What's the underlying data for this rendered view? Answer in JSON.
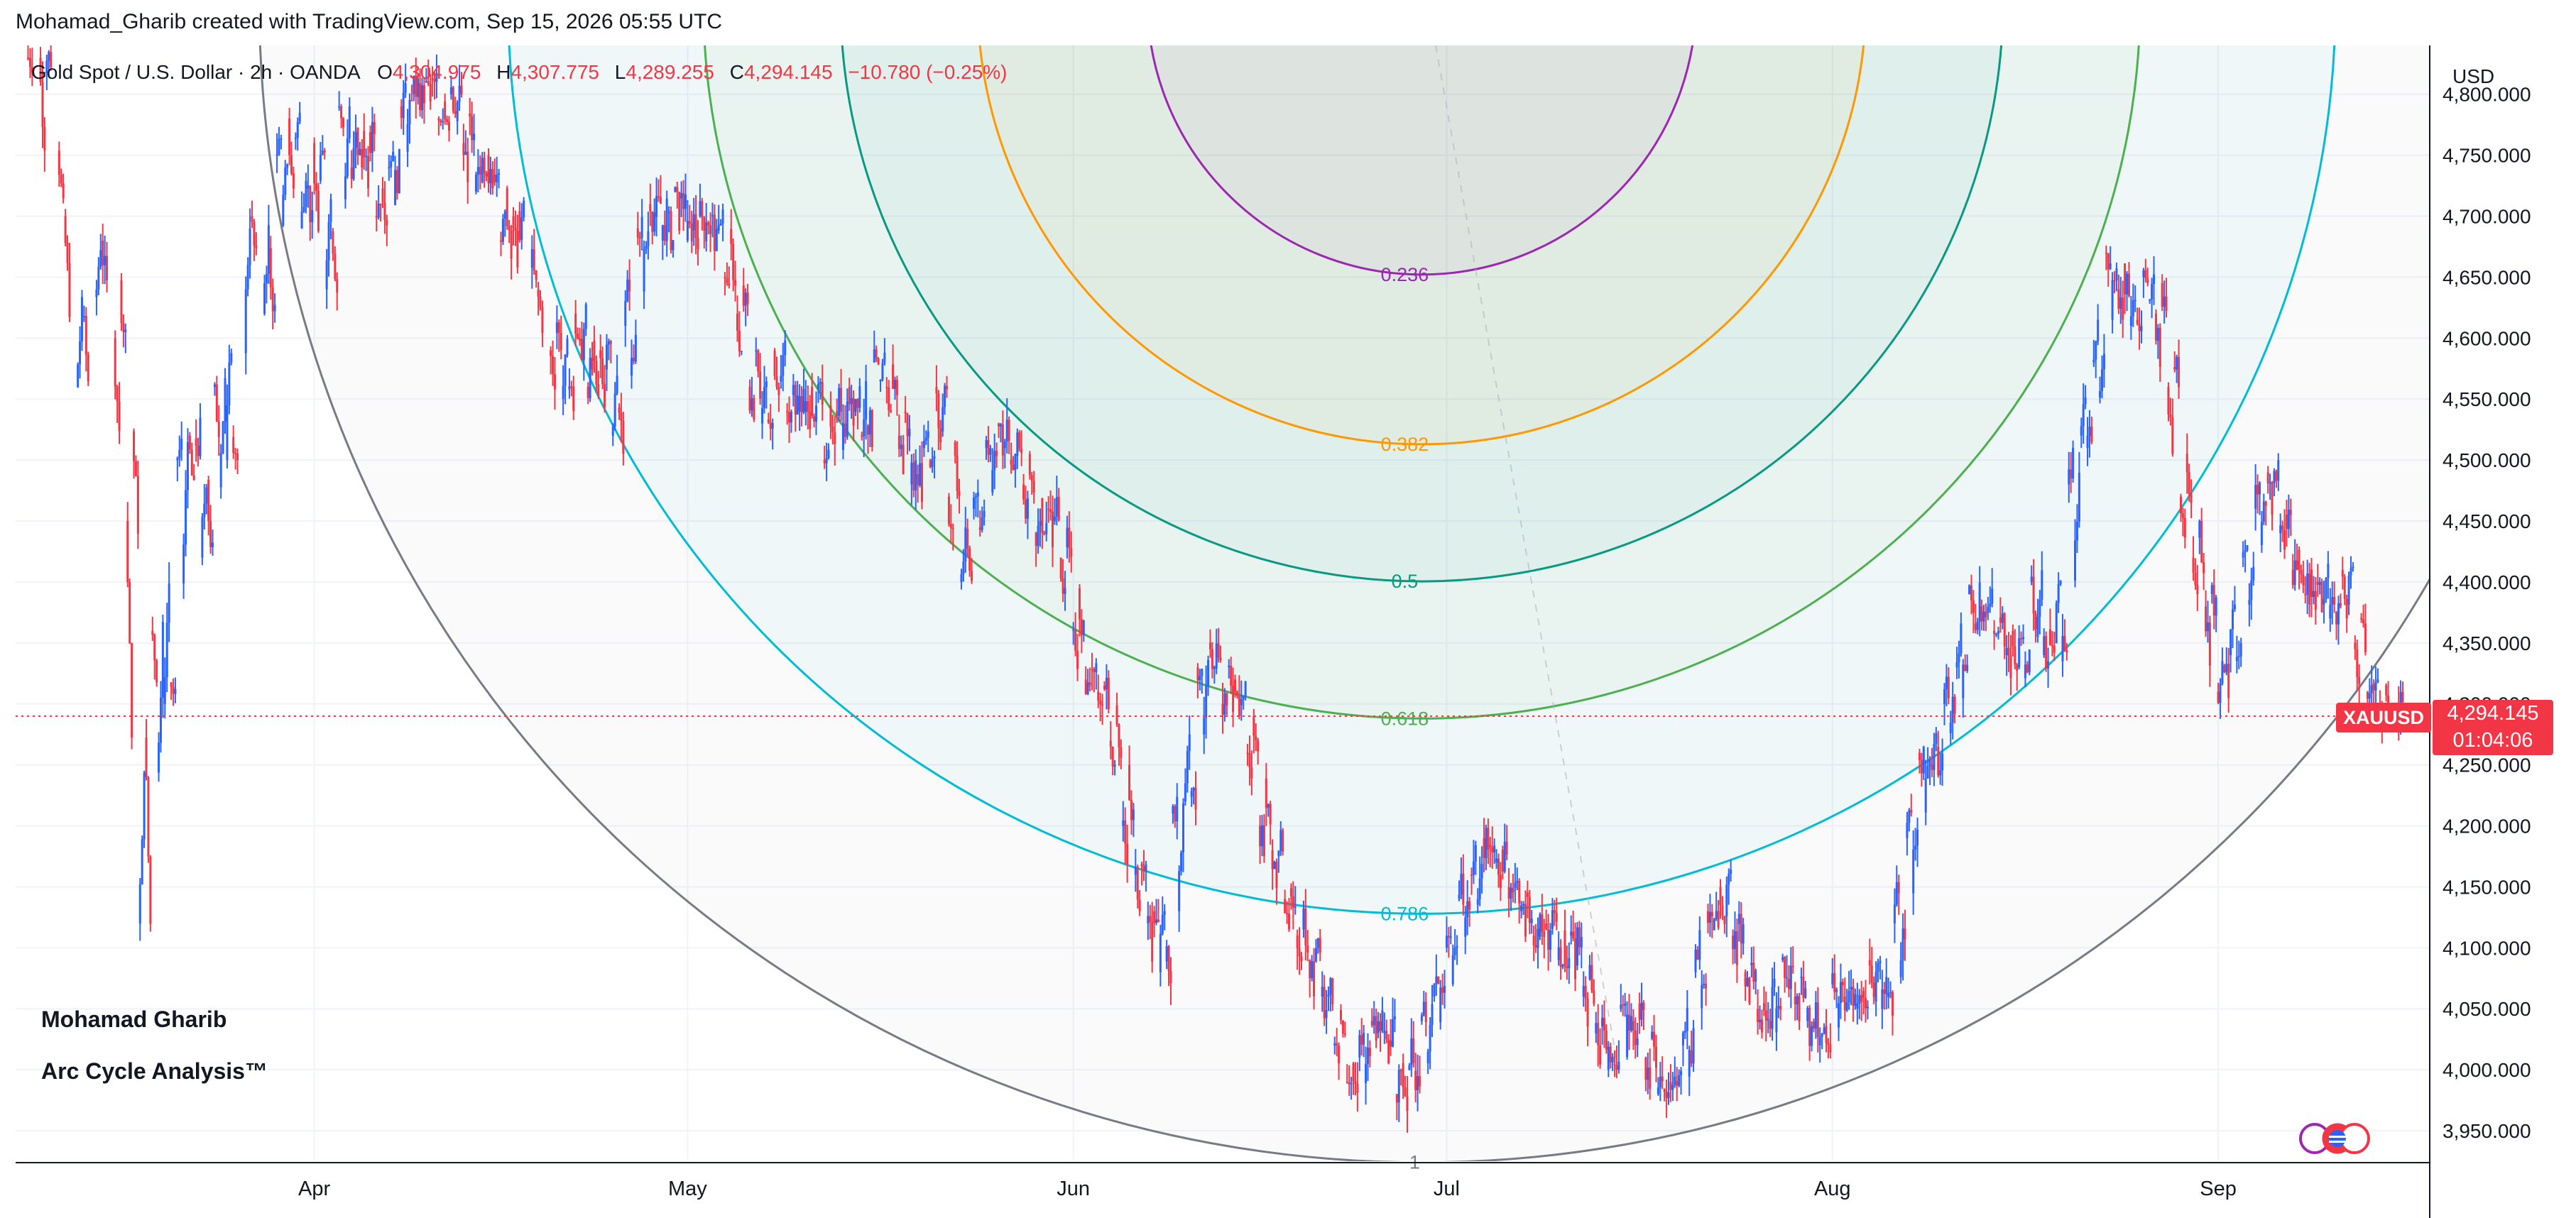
{
  "header": {
    "credit": "Mohamad_Gharib created with TradingView.com, Sep 15, 2026 05:55 UTC"
  },
  "legend": {
    "symbol": "Gold Spot / U.S. Dollar · 2h · OANDA",
    "open_key": "O",
    "open": "4,304.975",
    "high_key": "H",
    "high": "4,307.775",
    "low_key": "L",
    "low": "4,289.255",
    "close_key": "C",
    "close": "4,294.145",
    "change": "−10.780 (−0.25%)"
  },
  "axis": {
    "currency": "USD"
  },
  "price_tag": {
    "symbol": "XAUUSD",
    "price": "4,294.145",
    "countdown": "01:04:06"
  },
  "watermark": {
    "line1": "Mohamad Gharib",
    "line2": "Arc Cycle Analysis™"
  },
  "colors": {
    "up": "#2962ff",
    "down": "#f23645",
    "fib_0236": "#9c27b0",
    "fib_0382": "#ff9800",
    "fib_05": "#089981",
    "fib_0618": "#4caf50",
    "fib_0786": "#00bcd4",
    "fib_1": "#787b86"
  },
  "chart_data": {
    "type": "line",
    "title": "Gold Spot / U.S. Dollar · 2h · OANDA",
    "xlabel": "",
    "ylabel": "USD",
    "ylim": [
      3925,
      4840
    ],
    "y_ticks": [
      4800,
      4750,
      4700,
      4650,
      4600,
      4550,
      4500,
      4450,
      4400,
      4350,
      4300,
      4250,
      4200,
      4150,
      4100,
      4050,
      4000,
      3950
    ],
    "y_tick_labels": [
      "4,800.000",
      "4,750.000",
      "4,700.000",
      "4,650.000",
      "4,600.000",
      "4,550.000",
      "4,500.000",
      "4,450.000",
      "4,400.000",
      "4,350.000",
      "4,300.000",
      "4,250.000",
      "4,200.000",
      "4,150.000",
      "4,100.000",
      "4,050.000",
      "4,000.000",
      "3,950.000"
    ],
    "xlim": [
      "2026-03-08",
      "2026-09-18"
    ],
    "x_ticks": [
      "2026-04-01",
      "2026-05-01",
      "2026-06-01",
      "2026-07-01",
      "2026-08-01",
      "2026-09-01"
    ],
    "x_tick_labels": [
      "Apr",
      "May",
      "Jun",
      "Jul",
      "Aug",
      "Sep"
    ],
    "last_price": 4294.145,
    "series": [
      {
        "x": [
          "2026-03-10",
          "2026-03-11",
          "2026-03-13",
          "2026-03-14",
          "2026-03-16",
          "2026-03-17",
          "2026-03-18",
          "2026-03-19",
          "2026-03-20",
          "2026-03-21",
          "2026-03-22",
          "2026-03-23",
          "2026-03-24",
          "2026-03-25",
          "2026-03-26",
          "2026-03-28",
          "2026-03-29",
          "2026-03-30",
          "2026-03-31",
          "2026-04-01",
          "2026-04-02",
          "2026-04-03",
          "2026-04-04",
          "2026-04-05",
          "2026-04-06",
          "2026-04-07",
          "2026-04-08",
          "2026-04-09",
          "2026-04-10",
          "2026-04-11",
          "2026-04-12",
          "2026-04-13",
          "2026-04-14",
          "2026-04-15",
          "2026-04-16",
          "2026-04-17",
          "2026-04-18",
          "2026-04-20",
          "2026-04-21",
          "2026-04-22",
          "2026-04-23",
          "2026-04-24",
          "2026-04-25",
          "2026-04-26",
          "2026-04-27",
          "2026-04-28",
          "2026-04-29",
          "2026-04-30",
          "2026-05-01",
          "2026-05-02",
          "2026-05-03",
          "2026-05-04",
          "2026-05-05",
          "2026-05-06",
          "2026-05-07",
          "2026-05-08",
          "2026-05-09",
          "2026-05-10",
          "2026-05-11",
          "2026-05-12",
          "2026-05-13",
          "2026-05-14",
          "2026-05-15",
          "2026-05-16",
          "2026-05-17",
          "2026-05-18",
          "2026-05-19",
          "2026-05-20",
          "2026-05-21",
          "2026-05-22",
          "2026-05-23",
          "2026-05-24",
          "2026-05-25",
          "2026-05-26",
          "2026-05-27",
          "2026-05-28",
          "2026-05-29",
          "2026-05-30",
          "2026-05-31",
          "2026-06-01",
          "2026-06-02",
          "2026-06-03",
          "2026-06-04",
          "2026-06-05",
          "2026-06-06",
          "2026-06-07",
          "2026-06-08",
          "2026-06-09",
          "2026-06-10",
          "2026-06-11",
          "2026-06-12",
          "2026-06-13",
          "2026-06-14",
          "2026-06-15",
          "2026-06-16",
          "2026-06-17",
          "2026-06-18",
          "2026-06-19",
          "2026-06-20",
          "2026-06-21",
          "2026-06-22",
          "2026-06-23",
          "2026-06-24",
          "2026-06-25",
          "2026-06-26",
          "2026-06-27",
          "2026-06-28",
          "2026-06-29",
          "2026-06-30",
          "2026-07-01",
          "2026-07-02",
          "2026-07-03",
          "2026-07-04",
          "2026-07-05",
          "2026-07-06",
          "2026-07-07",
          "2026-07-08",
          "2026-07-09",
          "2026-07-10",
          "2026-07-11",
          "2026-07-12",
          "2026-07-13",
          "2026-07-14",
          "2026-07-15",
          "2026-07-16",
          "2026-07-17",
          "2026-07-18",
          "2026-07-19",
          "2026-07-20",
          "2026-07-21",
          "2026-07-22",
          "2026-07-23",
          "2026-07-24",
          "2026-07-25",
          "2026-07-26",
          "2026-07-27",
          "2026-07-28",
          "2026-07-29",
          "2026-07-30",
          "2026-07-31",
          "2026-08-01",
          "2026-08-02",
          "2026-08-03",
          "2026-08-04",
          "2026-08-05",
          "2026-08-06",
          "2026-08-07",
          "2026-08-08",
          "2026-08-09",
          "2026-08-10",
          "2026-08-11",
          "2026-08-12",
          "2026-08-13",
          "2026-08-14",
          "2026-08-15",
          "2026-08-16",
          "2026-08-17",
          "2026-08-18",
          "2026-08-19",
          "2026-08-20",
          "2026-08-21",
          "2026-08-22",
          "2026-08-23",
          "2026-08-24",
          "2026-08-25",
          "2026-08-26",
          "2026-08-27",
          "2026-08-28",
          "2026-08-29",
          "2026-08-30",
          "2026-08-31",
          "2026-09-01",
          "2026-09-02",
          "2026-09-03",
          "2026-09-04",
          "2026-09-05",
          "2026-09-06",
          "2026-09-07",
          "2026-09-08",
          "2026-09-09",
          "2026-09-10",
          "2026-09-11",
          "2026-09-12",
          "2026-09-13",
          "2026-09-14",
          "2026-09-15"
        ],
        "values": [
          4830,
          4700,
          4560,
          4680,
          4600,
          4450,
          4120,
          4360,
          4300,
          4500,
          4520,
          4420,
          4560,
          4500,
          4700,
          4620,
          4750,
          4780,
          4690,
          4760,
          4640,
          4790,
          4740,
          4770,
          4700,
          4740,
          4790,
          4800,
          4810,
          4780,
          4800,
          4760,
          4720,
          4750,
          4680,
          4700,
          4640,
          4590,
          4550,
          4620,
          4560,
          4590,
          4520,
          4610,
          4690,
          4710,
          4680,
          4720,
          4680,
          4700,
          4700,
          4650,
          4620,
          4560,
          4530,
          4590,
          4540,
          4540,
          4560,
          4500,
          4540,
          4560,
          4520,
          4580,
          4560,
          4520,
          4480,
          4510,
          4560,
          4470,
          4400,
          4460,
          4510,
          4530,
          4500,
          4480,
          4440,
          4460,
          4420,
          4360,
          4320,
          4310,
          4270,
          4200,
          4160,
          4120,
          4080,
          4210,
          4220,
          4330,
          4350,
          4300,
          4320,
          4260,
          4200,
          4180,
          4140,
          4110,
          4090,
          4060,
          4020,
          3990,
          4010,
          4040,
          4030,
          3980,
          4000,
          4040,
          4060,
          4100,
          4140,
          4160,
          4190,
          4170,
          4150,
          4130,
          4110,
          4120,
          4090,
          4110,
          4060,
          4030,
          4000,
          4050,
          4040,
          4010,
          3980,
          3990,
          4020,
          4080,
          4130,
          4150,
          4110,
          4080,
          4050,
          4040,
          4090,
          4060,
          4040,
          4020,
          4070,
          4060,
          4050,
          4090,
          4050,
          4120,
          4190,
          4260,
          4250,
          4300,
          4330,
          4390,
          4380,
          4360,
          4340,
          4330,
          4400,
          4340,
          4350,
          4480,
          4520,
          4580,
          4670,
          4640,
          4610,
          4650,
          4620,
          4560,
          4470,
          4420,
          4380,
          4310,
          4340,
          4420,
          4460,
          4490,
          4440,
          4410,
          4390,
          4400,
          4370,
          4410,
          4350,
          4310,
          4300,
          4294
        ]
      }
    ],
    "fib_arc_levels": [
      0.236,
      0.382,
      0.5,
      0.618,
      0.786,
      1
    ],
    "fib_arc_labels": [
      "0.236",
      "0.382",
      "0.5",
      "0.618",
      "0.786",
      "1"
    ],
    "fib_arc_center": {
      "x": "2026-06-29",
      "y": 4877
    },
    "fib_arc_radius_price": 953
  }
}
